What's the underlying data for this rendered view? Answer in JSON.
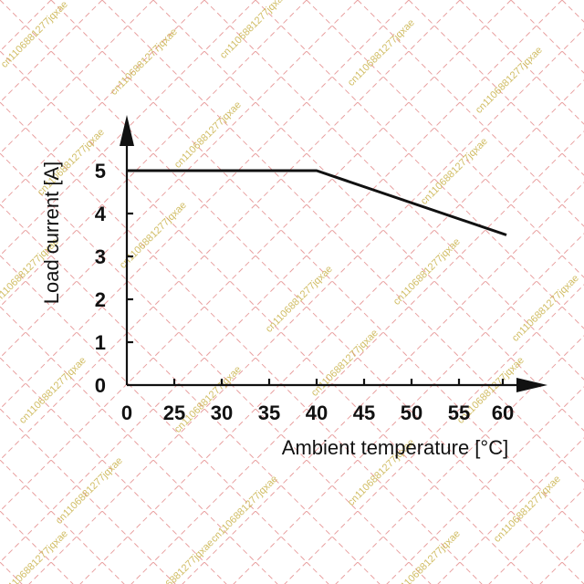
{
  "colors": {
    "background": "#ffffff",
    "watermark_grid": "#e8a0a0",
    "watermark_text": "#c9b24a",
    "ink": "#111111"
  },
  "watermark": {
    "text": "cn1106881277jqxae"
  },
  "chart_data": {
    "type": "line",
    "title": "",
    "xlabel": "Ambient temperature [°C]",
    "ylabel": "Load current [A]",
    "xlim": [
      0,
      60
    ],
    "ylim": [
      0,
      5
    ],
    "x_ticks": [
      "0",
      "25",
      "30",
      "35",
      "40",
      "45",
      "50",
      "55",
      "60"
    ],
    "y_ticks": [
      "0",
      "1",
      "2",
      "3",
      "4",
      "5"
    ],
    "grid": false,
    "series": [
      {
        "x": [
          0,
          40,
          60
        ],
        "y": [
          5,
          5,
          3.5
        ]
      }
    ]
  }
}
